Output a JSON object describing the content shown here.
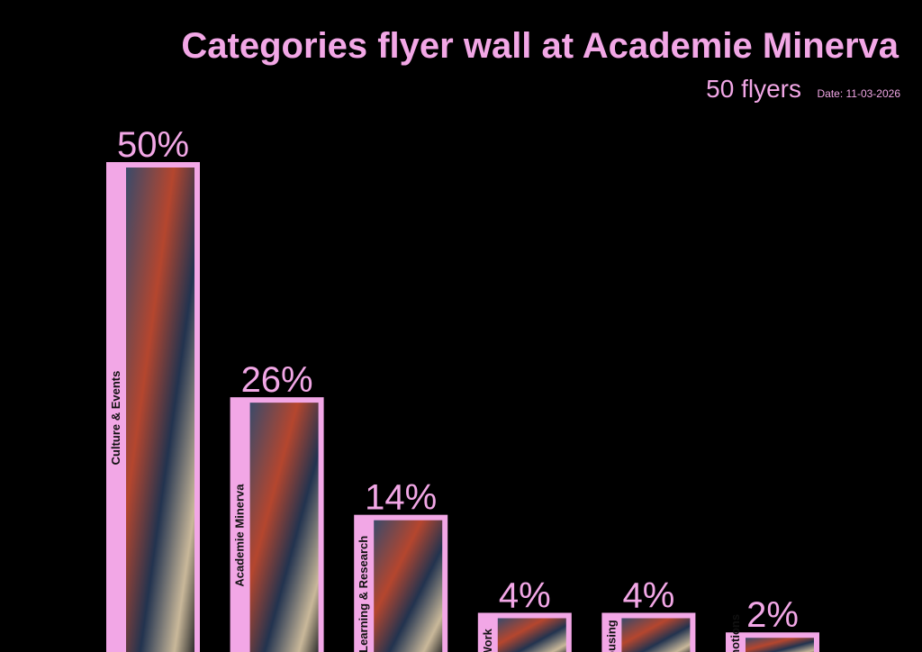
{
  "chart_data": {
    "type": "bar",
    "title": "Categories flyer wall at Academie Minerva",
    "subtitle": "50 flyers",
    "date": "Date: 11-03-2026",
    "categories": [
      "Culture & Events",
      "Academie Minerva",
      "Learning & Research",
      "Work",
      "Housing",
      "Promotions"
    ],
    "values": [
      50,
      26,
      14,
      4,
      4,
      2
    ],
    "value_labels": [
      "50%",
      "26%",
      "14%",
      "4%",
      "4%",
      "2%"
    ],
    "color": "#f2a7e6",
    "ylim": [
      0,
      50
    ]
  }
}
